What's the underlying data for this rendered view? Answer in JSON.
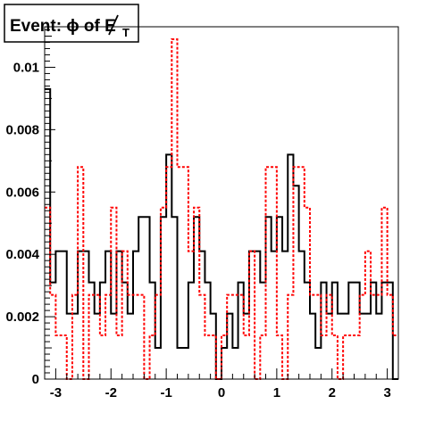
{
  "chart_data": {
    "type": "histogram",
    "title": "Event: ϕ of E̸",
    "title_main": "Event: ϕ of ",
    "title_symbol": "E",
    "title_subscript": "T",
    "xlim": [
      -3.2,
      3.2
    ],
    "ylim": [
      0,
      0.0113
    ],
    "x_ticks": [
      -3,
      -2,
      -1,
      0,
      1,
      2,
      3
    ],
    "x_tick_labels": [
      "-3",
      "-2",
      "-1",
      "0",
      "1",
      "2",
      "3"
    ],
    "y_ticks": [
      0,
      0.002,
      0.004,
      0.006,
      0.008,
      0.01
    ],
    "y_tick_labels": [
      "0",
      "0.002",
      "0.004",
      "0.006",
      "0.008",
      "0.01"
    ],
    "grid": false,
    "legend": "none",
    "bins": {
      "n": 64,
      "low": -3.2,
      "high": 3.2
    },
    "series": [
      {
        "color": "#000000",
        "style": "solid",
        "values": [
          0.0093,
          0.0031,
          0.0041,
          0.0041,
          0.0021,
          0.0021,
          0.0041,
          0.0041,
          0.0031,
          0.0021,
          0.0031,
          0.0041,
          0.0021,
          0.0041,
          0.0031,
          0.0021,
          0.0041,
          0.0052,
          0.0052,
          0.0031,
          0.001,
          0.0052,
          0.0072,
          0.0052,
          0.001,
          0.001,
          0.0031,
          0.0052,
          0.0041,
          0.0031,
          0.0021,
          0.0,
          0.001,
          0.0021,
          0.001,
          0.0031,
          0.0021,
          0.0041,
          0.0041,
          0.0031,
          0.0052,
          0.0041,
          0.0052,
          0.0041,
          0.0072,
          0.0062,
          0.0041,
          0.0031,
          0.0021,
          0.001,
          0.0031,
          0.0021,
          0.0031,
          0.0021,
          0.0021,
          0.0031,
          0.0031,
          0.0021,
          0.0021,
          0.0031,
          0.0021,
          0.0031,
          0.0031,
          0.0
        ]
      },
      {
        "color": "#ff0000",
        "style": "dotted",
        "values": [
          0.0055,
          0.0027,
          0.0014,
          0.0014,
          0.0,
          0.0027,
          0.0068,
          0.0,
          0.0027,
          0.0027,
          0.0014,
          0.0027,
          0.0055,
          0.0014,
          0.0041,
          0.0027,
          0.0027,
          0.0027,
          0.0,
          0.0014,
          0.0027,
          0.0055,
          0.0068,
          0.0109,
          0.0068,
          0.0068,
          0.0041,
          0.0055,
          0.0027,
          0.0014,
          0.0014,
          0.0,
          0.0014,
          0.0027,
          0.0027,
          0.0027,
          0.0014,
          0.0041,
          0.0,
          0.0014,
          0.0068,
          0.0068,
          0.0014,
          0.0,
          0.0027,
          0.0068,
          0.0068,
          0.0055,
          0.0027,
          0.0027,
          0.0014,
          0.0027,
          0.0014,
          0.0,
          0.0014,
          0.0014,
          0.0014,
          0.0027,
          0.0041,
          0.0027,
          0.0027,
          0.0055,
          0.0027,
          0.0014
        ]
      }
    ]
  }
}
